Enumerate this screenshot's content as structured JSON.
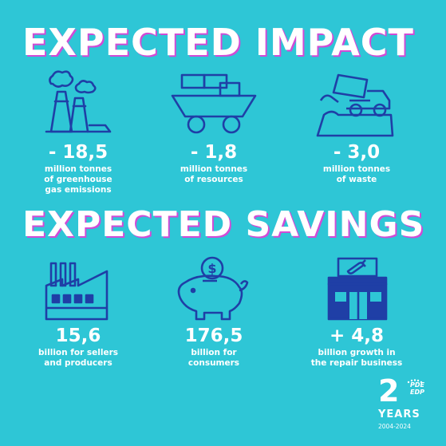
{
  "impact": {
    "heading": "EXPECTED IMPACT",
    "items": [
      {
        "value": "- 18,5",
        "label": [
          "million tonnes",
          "of greenhouse",
          "gas emissions"
        ],
        "icon": "factory-smoke-icon"
      },
      {
        "value": "- 1,8",
        "label": [
          "million tonnes",
          "of resources"
        ],
        "icon": "mine-cart-icon"
      },
      {
        "value": "- 3,0",
        "label": [
          "million tonnes",
          "of waste"
        ],
        "icon": "dump-truck-icon"
      }
    ]
  },
  "savings": {
    "heading": "EXPECTED SAVINGS",
    "items": [
      {
        "value": "15,6",
        "label": [
          "billion for sellers",
          "and producers"
        ],
        "icon": "factory-icon"
      },
      {
        "value": "176,5",
        "label": [
          "billion for",
          "consumers"
        ],
        "icon": "piggy-bank-icon"
      },
      {
        "value": "+ 4,8",
        "label": [
          "billion growth in",
          "the repair business"
        ],
        "icon": "repair-shop-icon"
      }
    ]
  },
  "badge": {
    "number": "2",
    "logo_top": "PDE",
    "logo_bottom": "EDP",
    "word": "YEARS",
    "range": "2004-2024"
  },
  "colors": {
    "background": "#2ec6d6",
    "icon": "#1f3fa6",
    "text": "#ffffff",
    "shadow": "#d14bd6"
  }
}
